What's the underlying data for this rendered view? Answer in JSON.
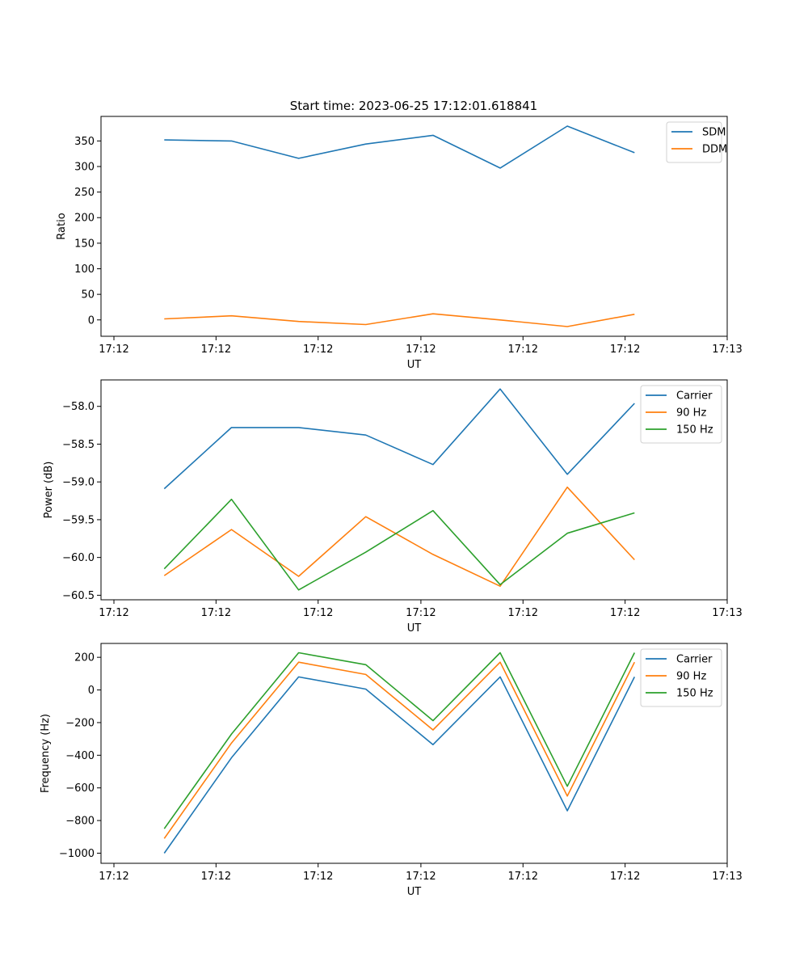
{
  "title": "Start time: 2023-06-25 17:12:01.618841",
  "colors": {
    "blue": "#1f77b4",
    "orange": "#ff7f0e",
    "green": "#2ca02c"
  },
  "chart_data": [
    {
      "type": "line",
      "title": "Start time: 2023-06-25 17:12:01.618841",
      "xlabel": "UT",
      "ylabel": "Ratio",
      "x_tick_labels": [
        "17:12",
        "17:12",
        "17:12",
        "17:12",
        "17:12",
        "17:12",
        "17:13"
      ],
      "y_ticks": [
        0,
        50,
        100,
        150,
        200,
        250,
        300,
        350
      ],
      "ylim": [
        -32,
        398
      ],
      "grid": false,
      "legend_position": "top-right",
      "series": [
        {
          "name": "SDM",
          "color": "#1f77b4",
          "values": [
            352,
            350,
            316,
            344,
            361,
            297,
            379,
            327
          ]
        },
        {
          "name": "DDM",
          "color": "#ff7f0e",
          "values": [
            2,
            8,
            -3,
            -9,
            12,
            0,
            -13,
            11
          ]
        }
      ]
    },
    {
      "type": "line",
      "xlabel": "UT",
      "ylabel": "Power (dB)",
      "x_tick_labels": [
        "17:12",
        "17:12",
        "17:12",
        "17:12",
        "17:12",
        "17:12",
        "17:13"
      ],
      "y_ticks": [
        -60.5,
        -60.0,
        -59.5,
        -59.0,
        -58.5,
        -58.0
      ],
      "y_tick_labels": [
        "−60.5",
        "−60.0",
        "−59.5",
        "−59.0",
        "−58.5",
        "−58.0"
      ],
      "ylim": [
        -60.56,
        -57.65
      ],
      "grid": false,
      "legend_position": "top-right",
      "series": [
        {
          "name": "Carrier",
          "color": "#1f77b4",
          "values": [
            -59.09,
            -58.28,
            -58.28,
            -58.38,
            -58.77,
            -57.77,
            -58.9,
            -57.96
          ]
        },
        {
          "name": "90 Hz",
          "color": "#ff7f0e",
          "values": [
            -60.24,
            -59.63,
            -60.25,
            -59.46,
            -59.96,
            -60.38,
            -59.07,
            -60.03
          ]
        },
        {
          "name": "150 Hz",
          "color": "#2ca02c",
          "values": [
            -60.15,
            -59.23,
            -60.43,
            -59.93,
            -59.38,
            -60.36,
            -59.68,
            -59.41
          ]
        }
      ]
    },
    {
      "type": "line",
      "xlabel": "UT",
      "ylabel": "Frequency (Hz)",
      "x_tick_labels": [
        "17:12",
        "17:12",
        "17:12",
        "17:12",
        "17:12",
        "17:12",
        "17:13"
      ],
      "y_ticks": [
        -1000,
        -800,
        -600,
        -400,
        -200,
        0,
        200
      ],
      "y_tick_labels": [
        "−1000",
        "−800",
        "−600",
        "−400",
        "−200",
        "0",
        "200"
      ],
      "ylim": [
        -1062,
        285
      ],
      "grid": false,
      "legend_position": "top-right",
      "series": [
        {
          "name": "Carrier",
          "color": "#1f77b4",
          "values": [
            -1000,
            -415,
            80,
            5,
            -335,
            80,
            -740,
            80
          ]
        },
        {
          "name": "90 Hz",
          "color": "#ff7f0e",
          "values": [
            -910,
            -325,
            170,
            95,
            -245,
            170,
            -650,
            170
          ]
        },
        {
          "name": "150 Hz",
          "color": "#2ca02c",
          "values": [
            -850,
            -270,
            228,
            155,
            -188,
            228,
            -590,
            228
          ]
        }
      ]
    }
  ]
}
